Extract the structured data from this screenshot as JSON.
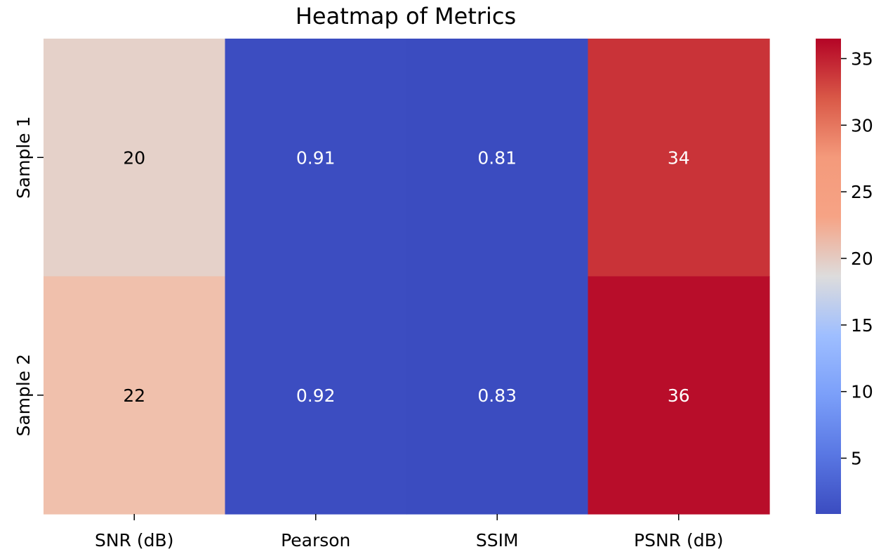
{
  "chart_data": {
    "type": "heatmap",
    "title": "Heatmap of Metrics",
    "x_categories": [
      "SNR (dB)",
      "Pearson",
      "SSIM",
      "PSNR (dB)"
    ],
    "y_categories": [
      "Sample 1",
      "Sample 2"
    ],
    "values": [
      [
        20,
        0.91,
        0.81,
        34
      ],
      [
        22,
        0.92,
        0.83,
        36
      ]
    ],
    "annotations": [
      [
        "20",
        "0.91",
        "0.81",
        "34"
      ],
      [
        "22",
        "0.92",
        "0.83",
        "36"
      ]
    ],
    "colormap": "coolwarm",
    "vmin": 0.81,
    "vmax": 36.5,
    "colorbar_ticks": [
      5,
      10,
      15,
      20,
      25,
      30,
      35
    ],
    "colorbar_tick_labels": [
      "5",
      "10",
      "15",
      "20",
      "25",
      "30",
      "35"
    ],
    "colorbar_position": "right"
  }
}
